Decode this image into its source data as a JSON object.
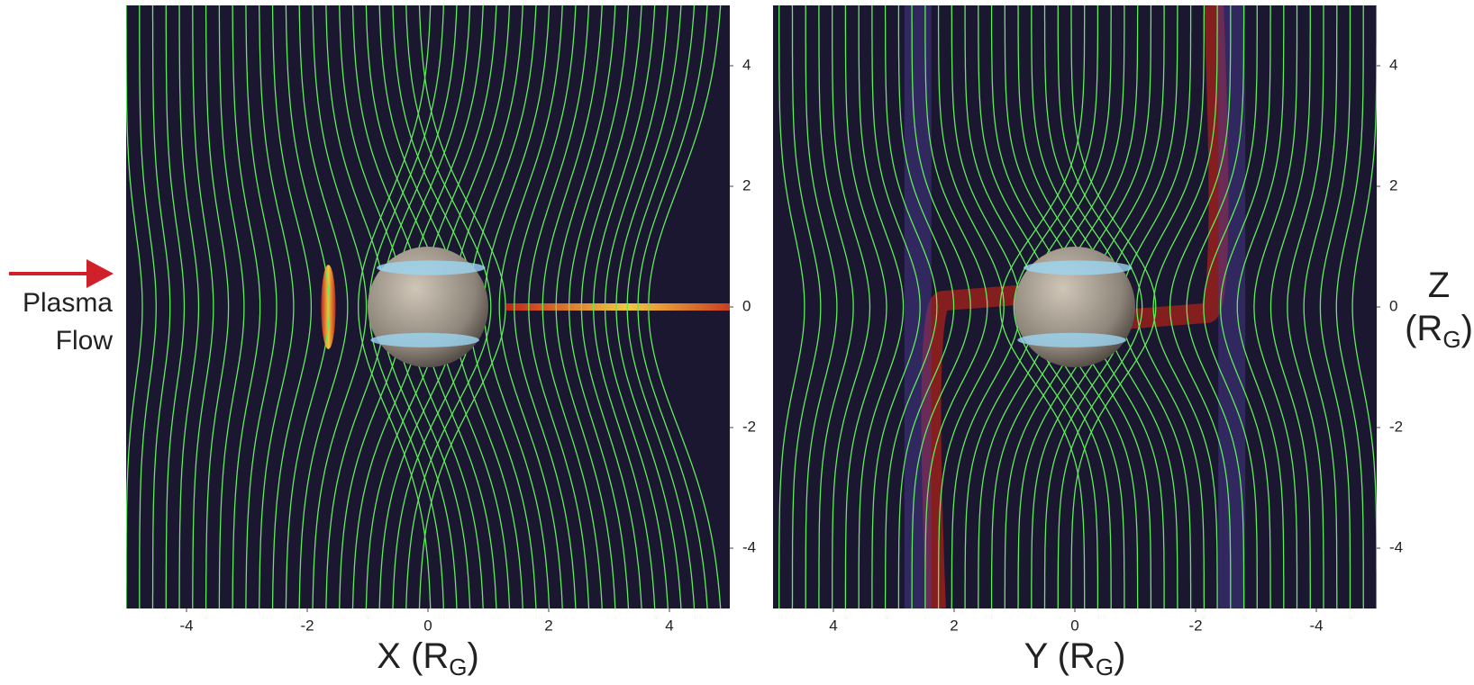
{
  "chart_data": [
    {
      "type": "field",
      "xlabel": [
        "X (R",
        "G",
        ")"
      ],
      "xlim": [
        -5,
        5
      ],
      "xticks": [
        -4,
        -2,
        0,
        2,
        4
      ],
      "ylim": [
        -5,
        5
      ],
      "yticks": [
        -4,
        -2,
        0,
        2,
        4
      ]
    },
    {
      "type": "field",
      "xlabel": [
        "Y (R",
        "G",
        ")"
      ],
      "xlim": [
        5,
        -5
      ],
      "xticks": [
        4,
        2,
        0,
        -2,
        -4
      ],
      "ylim": [
        -5,
        5
      ],
      "yticks": [
        -4,
        -2,
        0,
        2,
        4
      ],
      "ylabel": [
        "Z",
        "(R",
        "G",
        ")"
      ]
    }
  ],
  "annotation": [
    "Plasma",
    "Flow"
  ]
}
